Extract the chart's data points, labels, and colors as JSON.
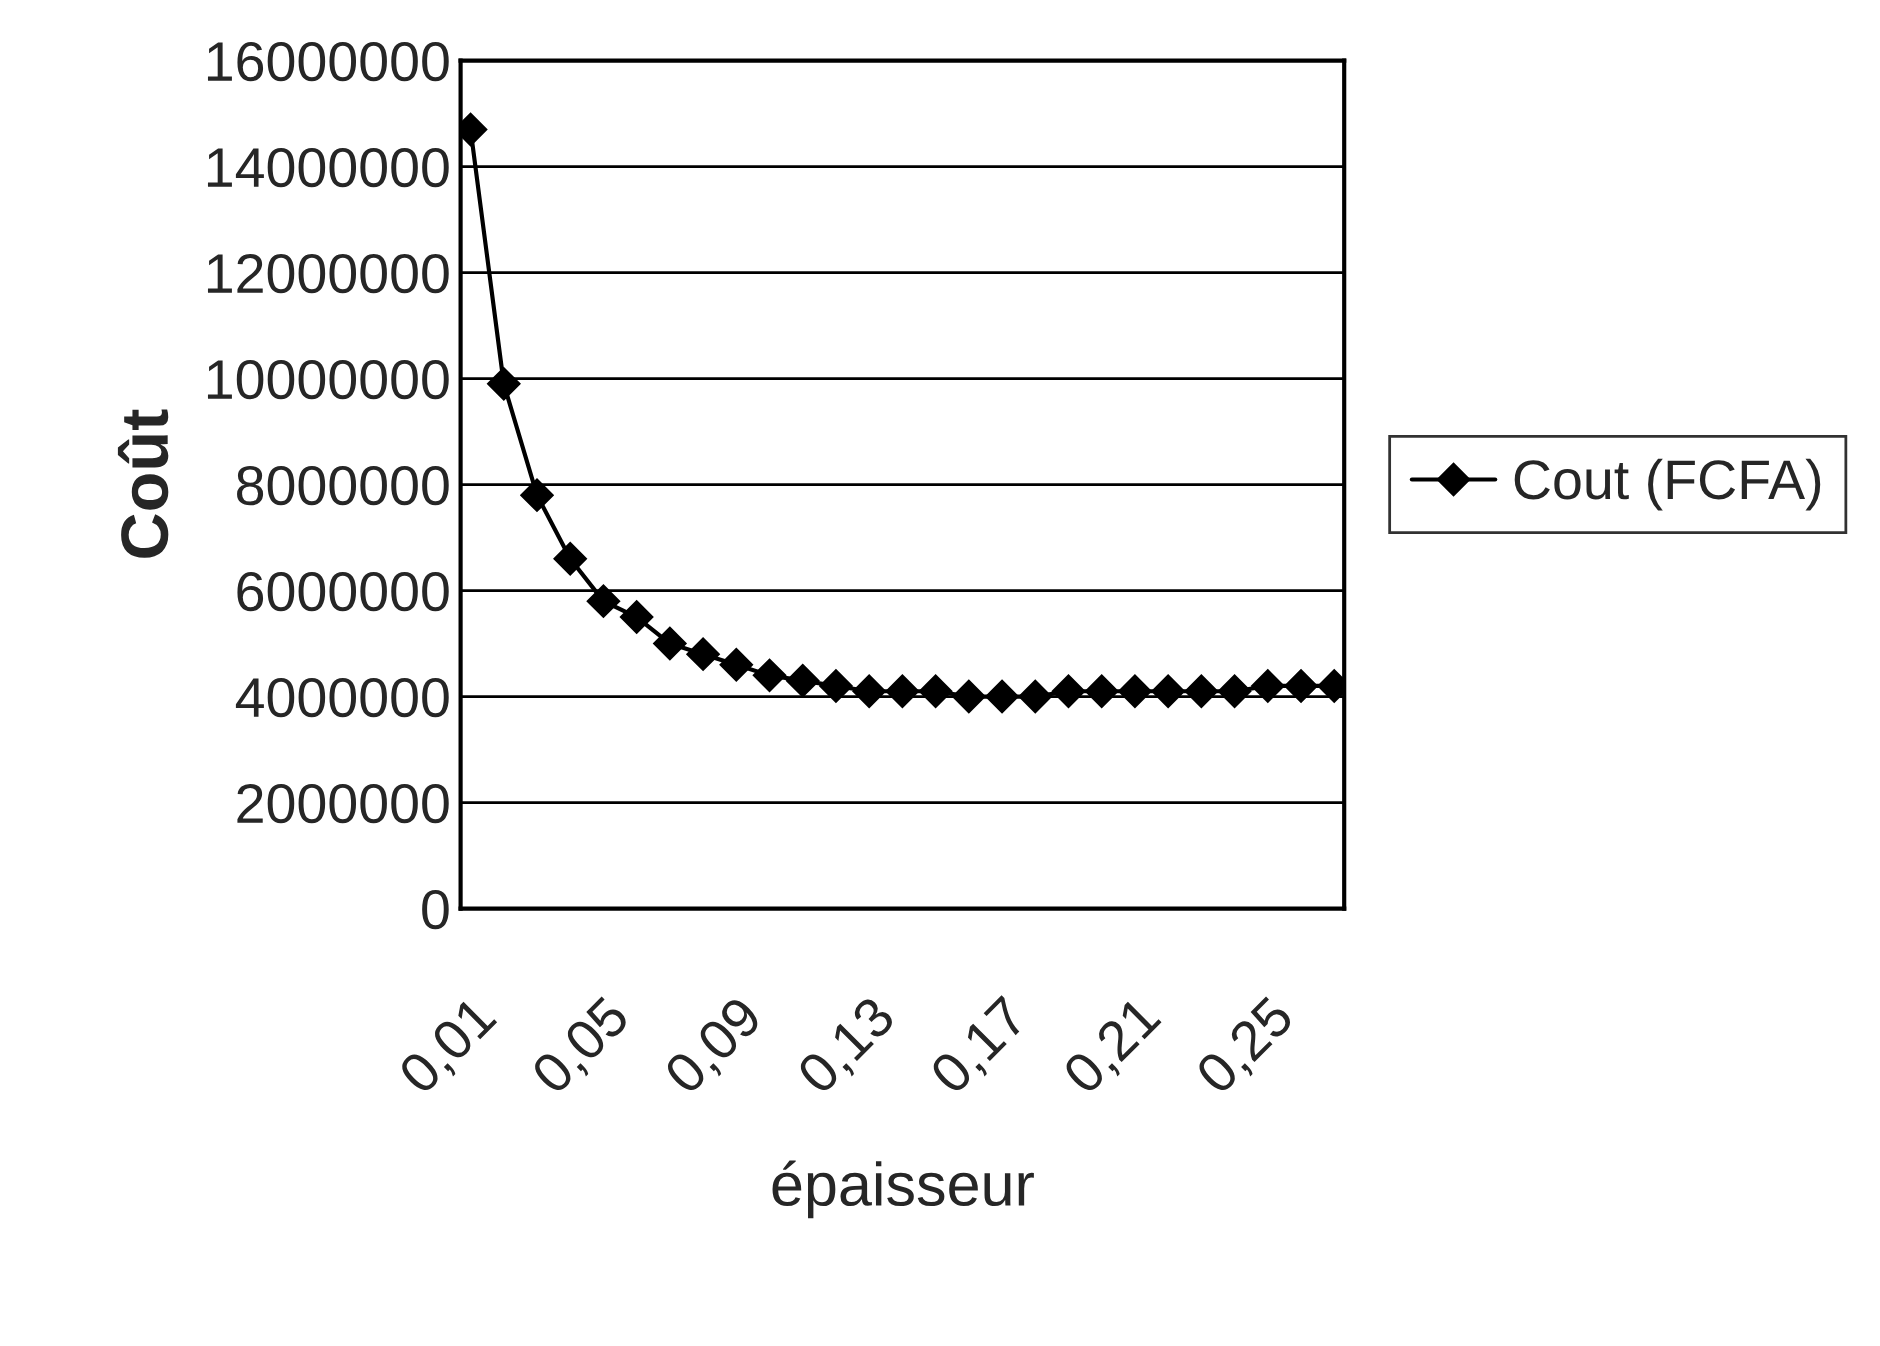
{
  "chart_data": {
    "type": "line",
    "xlabel": "épaisseur",
    "ylabel": "Coût",
    "categories": [
      "0,01",
      null,
      null,
      null,
      "0,05",
      null,
      null,
      null,
      "0,09",
      null,
      null,
      null,
      "0,13",
      null,
      null,
      null,
      "0,17",
      null,
      null,
      null,
      "0,21",
      null,
      null,
      null,
      "0,25",
      null,
      null
    ],
    "series": [
      {
        "name": "Cout (FCFA)",
        "color": "#000000",
        "values": [
          14700000,
          9900000,
          7800000,
          6600000,
          5800000,
          5500000,
          5000000,
          4800000,
          4600000,
          4400000,
          4300000,
          4200000,
          4100000,
          4100000,
          4100000,
          4000000,
          4000000,
          4000000,
          4100000,
          4100000,
          4100000,
          4100000,
          4100000,
          4100000,
          4200000,
          4200000,
          4200000
        ]
      }
    ],
    "ylim": [
      0,
      16000000
    ],
    "yticks": [
      0,
      2000000,
      4000000,
      6000000,
      8000000,
      10000000,
      12000000,
      14000000,
      16000000
    ],
    "grid": "y",
    "legend": "right",
    "marker": "diamond",
    "line_style": "solid"
  }
}
